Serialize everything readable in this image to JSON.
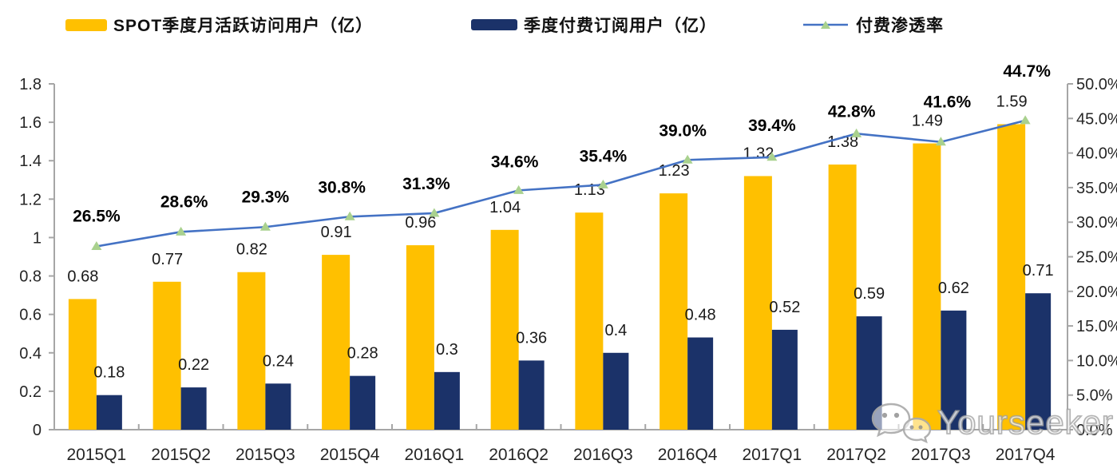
{
  "legend": {
    "mau": {
      "label": "SPOT季度月活跃访问用户（亿）",
      "color": "#FFC000"
    },
    "subs": {
      "label": "季度付费订阅用户（亿）",
      "color": "#1B3269"
    },
    "penetration": {
      "label": "付费渗透率",
      "line_color": "#4472C4",
      "marker_color": "#A9D18E"
    }
  },
  "chart_data": {
    "type": "combo",
    "categories": [
      "2015Q1",
      "2015Q2",
      "2015Q3",
      "2015Q4",
      "2016Q1",
      "2016Q2",
      "2016Q3",
      "2016Q4",
      "2017Q1",
      "2017Q2",
      "2017Q3",
      "2017Q4"
    ],
    "series": [
      {
        "name": "SPOT季度月活跃访问用户（亿）",
        "type": "bar",
        "axis": "left",
        "color": "#FFC000",
        "values": [
          0.68,
          0.77,
          0.82,
          0.91,
          0.96,
          1.04,
          1.13,
          1.23,
          1.32,
          1.38,
          1.49,
          1.59
        ],
        "labels": [
          "0.68",
          "0.77",
          "0.82",
          "0.91",
          "0.96",
          "1.04",
          "1.13",
          "1.23",
          "1.32",
          "1.38",
          "1.49",
          "1.59"
        ]
      },
      {
        "name": "季度付费订阅用户（亿）",
        "type": "bar",
        "axis": "left",
        "color": "#1B3269",
        "values": [
          0.18,
          0.22,
          0.24,
          0.28,
          0.3,
          0.36,
          0.4,
          0.48,
          0.52,
          0.59,
          0.62,
          0.71
        ],
        "labels": [
          "0.18",
          "0.22",
          "0.24",
          "0.28",
          "0.3",
          "0.36",
          "0.4",
          "0.48",
          "0.52",
          "0.59",
          "0.62",
          "0.71"
        ]
      },
      {
        "name": "付费渗透率",
        "type": "line",
        "axis": "right",
        "color": "#4472C4",
        "marker": "triangle",
        "marker_color": "#A9D18E",
        "values": [
          26.5,
          28.6,
          29.3,
          30.8,
          31.3,
          34.6,
          35.4,
          39.0,
          39.4,
          42.8,
          41.6,
          44.7
        ],
        "labels": [
          "26.5%",
          "28.6%",
          "29.3%",
          "30.8%",
          "31.3%",
          "34.6%",
          "35.4%",
          "39.0%",
          "39.4%",
          "42.8%",
          "41.6%",
          "44.7%"
        ]
      }
    ],
    "left_axis": {
      "min": 0,
      "max": 1.8,
      "step": 0.2,
      "ticks": [
        "0",
        "0.2",
        "0.4",
        "0.6",
        "0.8",
        "1",
        "1.2",
        "1.4",
        "1.6",
        "1.8"
      ]
    },
    "right_axis": {
      "min": 0,
      "max": 50,
      "step": 5,
      "ticks": [
        "0.0%",
        "5.0%",
        "10.0%",
        "15.0%",
        "20.0%",
        "25.0%",
        "30.0%",
        "35.0%",
        "40.0%",
        "45.0%",
        "50.0%"
      ]
    },
    "grid": false,
    "legend_position": "top",
    "axis_color": "#A6A6A6"
  },
  "watermark": {
    "text": "Yourseeker",
    "icon": "wechat-icon"
  }
}
